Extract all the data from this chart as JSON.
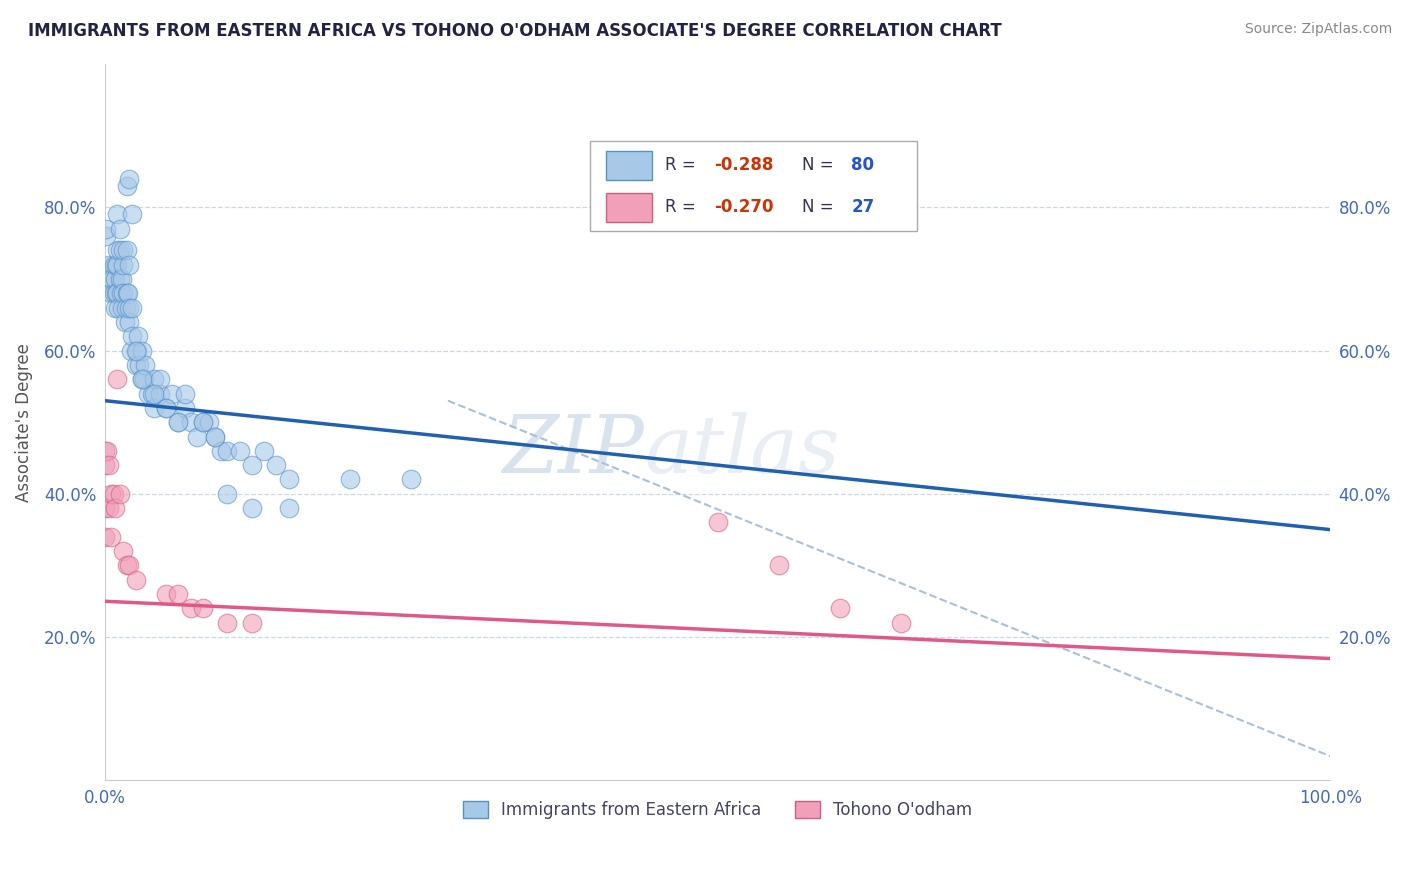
{
  "title": "IMMIGRANTS FROM EASTERN AFRICA VS TOHONO O'ODHAM ASSOCIATE'S DEGREE CORRELATION CHART",
  "source": "Source: ZipAtlas.com",
  "ylabel": "Associate's Degree",
  "xlim": [
    0.0,
    1.0
  ],
  "ylim": [
    0.0,
    1.0
  ],
  "yticks": [
    0.2,
    0.4,
    0.6,
    0.8
  ],
  "ytick_labels": [
    "20.0%",
    "40.0%",
    "60.0%",
    "80.0%"
  ],
  "xtick_labels": [
    "0.0%",
    "100.0%"
  ],
  "blue_color": "#a8c8e8",
  "blue_edge_color": "#5590c8",
  "pink_color": "#f0a0b8",
  "pink_edge_color": "#d06080",
  "blue_line_color": "#2060b0",
  "pink_line_color": "#e05888",
  "tick_label_color": "#4466cc",
  "blue_scatter": [
    [
      0.003,
      0.72
    ],
    [
      0.003,
      0.7
    ],
    [
      0.005,
      0.68
    ],
    [
      0.006,
      0.7
    ],
    [
      0.007,
      0.72
    ],
    [
      0.007,
      0.68
    ],
    [
      0.008,
      0.66
    ],
    [
      0.008,
      0.7
    ],
    [
      0.009,
      0.72
    ],
    [
      0.009,
      0.68
    ],
    [
      0.01,
      0.72
    ],
    [
      0.01,
      0.74
    ],
    [
      0.01,
      0.68
    ],
    [
      0.011,
      0.66
    ],
    [
      0.012,
      0.7
    ],
    [
      0.012,
      0.74
    ],
    [
      0.013,
      0.68
    ],
    [
      0.014,
      0.7
    ],
    [
      0.014,
      0.66
    ],
    [
      0.015,
      0.68
    ],
    [
      0.015,
      0.72
    ],
    [
      0.015,
      0.74
    ],
    [
      0.016,
      0.64
    ],
    [
      0.017,
      0.66
    ],
    [
      0.018,
      0.68
    ],
    [
      0.018,
      0.74
    ],
    [
      0.019,
      0.68
    ],
    [
      0.02,
      0.64
    ],
    [
      0.02,
      0.66
    ],
    [
      0.02,
      0.72
    ],
    [
      0.021,
      0.6
    ],
    [
      0.022,
      0.62
    ],
    [
      0.022,
      0.66
    ],
    [
      0.025,
      0.58
    ],
    [
      0.026,
      0.6
    ],
    [
      0.027,
      0.62
    ],
    [
      0.028,
      0.58
    ],
    [
      0.03,
      0.56
    ],
    [
      0.03,
      0.6
    ],
    [
      0.032,
      0.56
    ],
    [
      0.033,
      0.58
    ],
    [
      0.035,
      0.54
    ],
    [
      0.038,
      0.54
    ],
    [
      0.04,
      0.52
    ],
    [
      0.04,
      0.56
    ],
    [
      0.045,
      0.54
    ],
    [
      0.045,
      0.56
    ],
    [
      0.05,
      0.52
    ],
    [
      0.055,
      0.54
    ],
    [
      0.06,
      0.5
    ],
    [
      0.065,
      0.52
    ],
    [
      0.07,
      0.5
    ],
    [
      0.075,
      0.48
    ],
    [
      0.08,
      0.5
    ],
    [
      0.085,
      0.5
    ],
    [
      0.09,
      0.48
    ],
    [
      0.095,
      0.46
    ],
    [
      0.001,
      0.76
    ],
    [
      0.001,
      0.77
    ],
    [
      0.01,
      0.79
    ],
    [
      0.012,
      0.77
    ],
    [
      0.018,
      0.83
    ],
    [
      0.022,
      0.79
    ],
    [
      0.02,
      0.84
    ],
    [
      0.025,
      0.6
    ],
    [
      0.03,
      0.56
    ],
    [
      0.04,
      0.54
    ],
    [
      0.05,
      0.52
    ],
    [
      0.06,
      0.5
    ],
    [
      0.065,
      0.54
    ],
    [
      0.08,
      0.5
    ],
    [
      0.09,
      0.48
    ],
    [
      0.1,
      0.46
    ],
    [
      0.11,
      0.46
    ],
    [
      0.12,
      0.44
    ],
    [
      0.13,
      0.46
    ],
    [
      0.14,
      0.44
    ],
    [
      0.15,
      0.42
    ],
    [
      0.2,
      0.42
    ],
    [
      0.25,
      0.42
    ],
    [
      0.1,
      0.4
    ],
    [
      0.12,
      0.38
    ],
    [
      0.15,
      0.38
    ]
  ],
  "pink_scatter": [
    [
      0.0,
      0.46
    ],
    [
      0.0,
      0.44
    ],
    [
      0.0,
      0.38
    ],
    [
      0.0,
      0.34
    ],
    [
      0.002,
      0.46
    ],
    [
      0.003,
      0.44
    ],
    [
      0.003,
      0.38
    ],
    [
      0.005,
      0.4
    ],
    [
      0.005,
      0.34
    ],
    [
      0.007,
      0.4
    ],
    [
      0.008,
      0.38
    ],
    [
      0.01,
      0.56
    ],
    [
      0.012,
      0.4
    ],
    [
      0.015,
      0.32
    ],
    [
      0.018,
      0.3
    ],
    [
      0.02,
      0.3
    ],
    [
      0.025,
      0.28
    ],
    [
      0.05,
      0.26
    ],
    [
      0.06,
      0.26
    ],
    [
      0.07,
      0.24
    ],
    [
      0.08,
      0.24
    ],
    [
      0.1,
      0.22
    ],
    [
      0.12,
      0.22
    ],
    [
      0.5,
      0.36
    ],
    [
      0.55,
      0.3
    ],
    [
      0.6,
      0.24
    ],
    [
      0.65,
      0.22
    ]
  ],
  "blue_trendline_x": [
    0.0,
    1.0
  ],
  "blue_trendline_y": [
    0.53,
    0.35
  ],
  "pink_trendline_x": [
    0.0,
    1.0
  ],
  "pink_trendline_y": [
    0.25,
    0.17
  ],
  "dashed_line_x": [
    0.28,
    1.02
  ],
  "dashed_line_y": [
    0.53,
    0.02
  ],
  "watermark_zip": "ZIP",
  "watermark_atlas": "atlas",
  "background_color": "#ffffff",
  "grid_color": "#c8d8e8"
}
